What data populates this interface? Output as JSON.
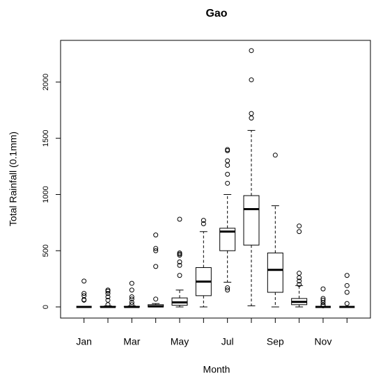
{
  "chart_data": {
    "type": "boxplot",
    "title": "Gao",
    "x_label": "Month",
    "y_label": "Total Rainfall (0.1mm)",
    "categories": [
      "Jan",
      null,
      "Mar",
      null,
      "May",
      null,
      "Jul",
      null,
      "Sep",
      null,
      "Nov",
      null
    ],
    "boxes": [
      {
        "whislo": 0,
        "q1": 0,
        "median": 0,
        "q3": 0,
        "whishi": 0,
        "outliers": [
          230,
          120,
          100,
          65,
          60
        ]
      },
      {
        "whislo": 0,
        "q1": 0,
        "median": 0,
        "q3": 5,
        "whishi": 10,
        "outliers": [
          150,
          140,
          120,
          90,
          60,
          20
        ]
      },
      {
        "whislo": 0,
        "q1": 0,
        "median": 0,
        "q3": 5,
        "whishi": 10,
        "outliers": [
          210,
          150,
          90,
          70,
          40,
          20
        ]
      },
      {
        "whislo": 0,
        "q1": 0,
        "median": 5,
        "q3": 20,
        "whishi": 30,
        "outliers": [
          640,
          520,
          500,
          360,
          70
        ]
      },
      {
        "whislo": 0,
        "q1": 15,
        "median": 40,
        "q3": 80,
        "whishi": 150,
        "outliers": [
          780,
          480,
          470,
          460,
          400,
          370,
          280
        ]
      },
      {
        "whislo": 0,
        "q1": 100,
        "median": 225,
        "q3": 350,
        "whishi": 670,
        "outliers": [
          770,
          740
        ]
      },
      {
        "whislo": 220,
        "q1": 500,
        "median": 670,
        "q3": 700,
        "whishi": 1000,
        "outliers": [
          1400,
          1390,
          1300,
          1260,
          1180,
          1100,
          170,
          150
        ]
      },
      {
        "whislo": 10,
        "q1": 550,
        "median": 870,
        "q3": 990,
        "whishi": 1570,
        "outliers": [
          2280,
          2020,
          1720,
          1680
        ]
      },
      {
        "whislo": 0,
        "q1": 130,
        "median": 330,
        "q3": 480,
        "whishi": 900,
        "outliers": [
          1350
        ]
      },
      {
        "whislo": 0,
        "q1": 20,
        "median": 45,
        "q3": 75,
        "whishi": 190,
        "outliers": [
          720,
          670,
          300,
          260,
          230,
          200
        ]
      },
      {
        "whislo": 0,
        "q1": 0,
        "median": 0,
        "q3": 0,
        "whishi": 0,
        "outliers": [
          160,
          75,
          60,
          40,
          20,
          10
        ]
      },
      {
        "whislo": 0,
        "q1": 0,
        "median": 0,
        "q3": 0,
        "whishi": 0,
        "outliers": [
          280,
          190,
          130,
          30
        ]
      }
    ],
    "color": "#000000",
    "ylim": [
      -99,
      2371
    ],
    "yticks": [
      0,
      500,
      1000,
      1500,
      2000
    ]
  }
}
